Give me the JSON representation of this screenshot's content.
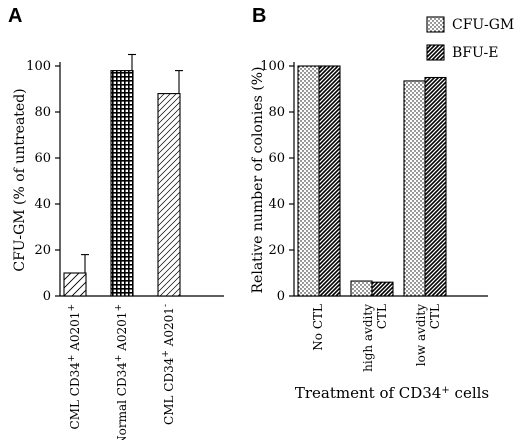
{
  "panels": {
    "a_letter": "A",
    "b_letter": "B"
  },
  "chart_data": [
    {
      "type": "bar",
      "panel": "A",
      "ylabel": "CFU-GM (% of untreated)",
      "xlabel": "",
      "ylim": [
        0,
        100
      ],
      "yticks": [
        "0",
        "20",
        "40",
        "60",
        "80",
        "100"
      ],
      "categories": [
        [
          "CML CD34",
          "+",
          " A0201",
          "+"
        ],
        [
          "Normal CD34",
          "+",
          " A0201",
          "+"
        ],
        [
          "CML CD34",
          "+",
          " A0201",
          "-"
        ]
      ],
      "values": [
        10,
        98,
        88
      ],
      "errors": [
        8,
        7,
        10
      ],
      "patterns": [
        "diag-wide",
        "crosshatch",
        "diag-fine"
      ],
      "grid": false
    },
    {
      "type": "bar",
      "panel": "B",
      "ylabel": "Relative number of colonies (%)",
      "xlabel_parts": [
        "Treatment of CD34",
        "+",
        " cells"
      ],
      "ylim": [
        0,
        100
      ],
      "yticks": [
        "0",
        "20",
        "40",
        "60",
        "80",
        "100"
      ],
      "categories": [
        [
          "No CTL"
        ],
        [
          "high avdity",
          "CTL"
        ],
        [
          "low avdity",
          "CTL"
        ]
      ],
      "series": [
        {
          "name": "CFU-GM",
          "values": [
            100,
            6.5,
            93.5
          ],
          "pattern": "dots"
        },
        {
          "name": "BFU-E",
          "values": [
            100,
            6,
            95
          ],
          "pattern": "diag-dense"
        }
      ],
      "legend": "top-right",
      "grid": false
    }
  ]
}
